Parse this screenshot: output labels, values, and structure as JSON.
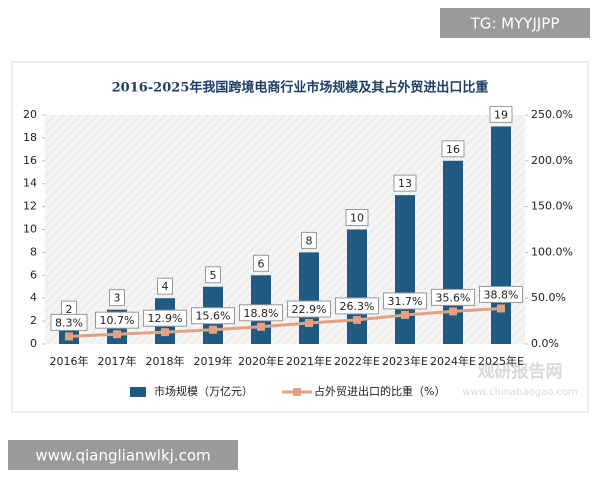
{
  "header_tag": "TG: MYYJJPP",
  "footer_url": "www.qianglianwlkj.com",
  "watermark": [
    "观研报告网",
    "www.chinabaogao.com"
  ],
  "chart_data": {
    "type": "bar",
    "title": "2016-2025年我国跨境电商行业市场规模及其占外贸进出口比重",
    "categories": [
      "2016年",
      "2017年",
      "2018年",
      "2019年",
      "2020年E",
      "2021年E",
      "2022年E",
      "2023年E",
      "2024年E",
      "2025年E"
    ],
    "series": [
      {
        "name": "市场规模（万亿元）",
        "color": "#1e5a82",
        "values": [
          2,
          3,
          4,
          5,
          6,
          8,
          10,
          13,
          16,
          19
        ]
      },
      {
        "name": "占外贸进出口的比重（%）",
        "color": "#e3a184",
        "type": "line",
        "axis": "y2",
        "values": [
          8.3,
          10.7,
          12.9,
          15.6,
          18.8,
          22.9,
          26.3,
          31.7,
          35.6,
          38.8
        ],
        "value_labels": [
          "8.3%",
          "10.7%",
          "12.9%",
          "15.6%",
          "18.8%",
          "22.9%",
          "26.3%",
          "31.7%",
          "35.6%",
          "38.8%"
        ]
      }
    ],
    "ylim": [
      0,
      20
    ],
    "yticks": [
      0,
      2,
      4,
      6,
      8,
      10,
      12,
      14,
      16,
      18,
      20
    ],
    "y2lim": [
      0,
      250
    ],
    "y2ticks": [
      {
        "value": 0,
        "label": "0.0%"
      },
      {
        "value": 50,
        "label": "50.0%"
      },
      {
        "value": 100,
        "label": "100.0%"
      },
      {
        "value": 150,
        "label": "150.0%"
      },
      {
        "value": 200,
        "label": "200.0%"
      },
      {
        "value": 250,
        "label": "250.0%"
      }
    ],
    "legend": "bottom"
  }
}
